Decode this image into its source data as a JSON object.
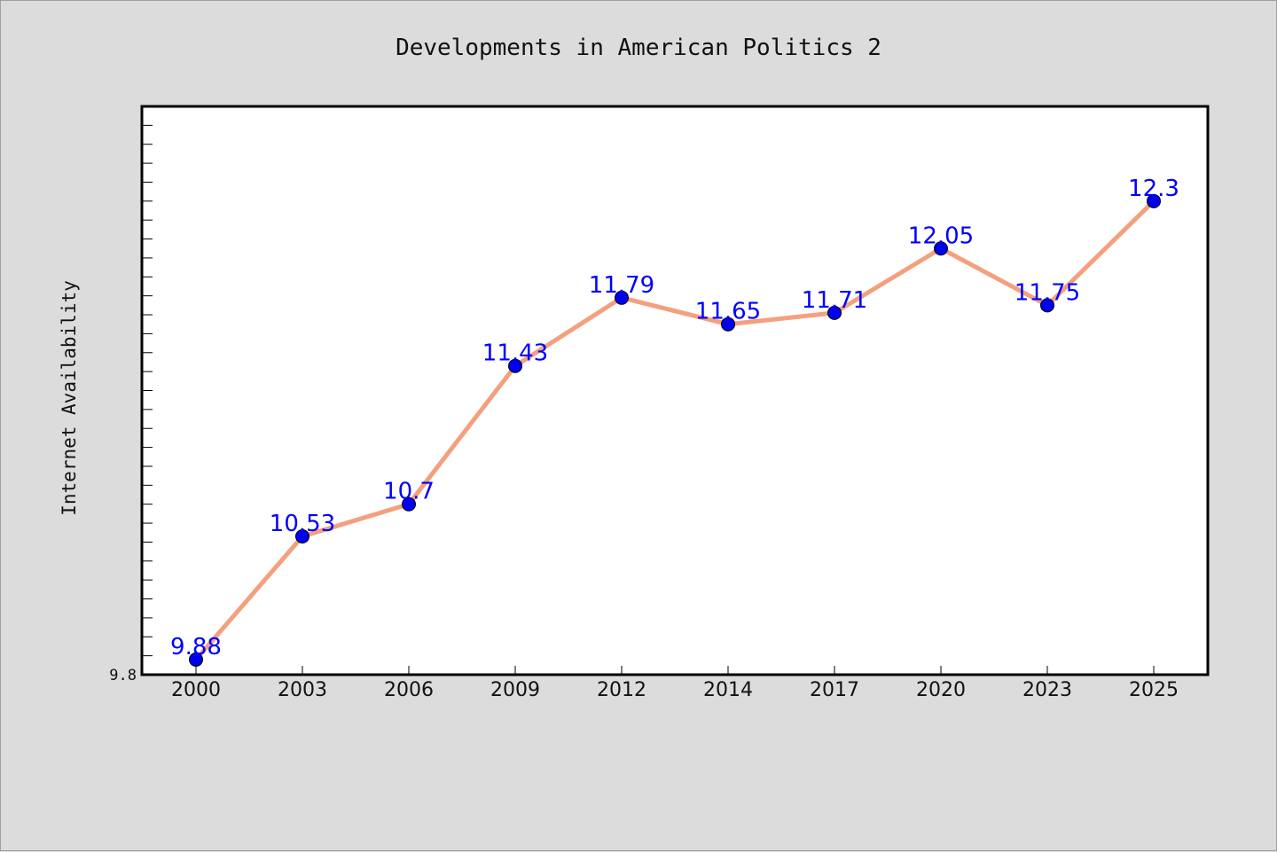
{
  "chart_data": {
    "type": "line",
    "title": "Developments in American Politics 2",
    "xlabel": "",
    "ylabel": "Internet Availability",
    "categories": [
      "2000",
      "2003",
      "2006",
      "2009",
      "2012",
      "2014",
      "2017",
      "2020",
      "2023",
      "2025"
    ],
    "series": [
      {
        "values": [
          9.88,
          10.53,
          10.7,
          11.43,
          11.79,
          11.65,
          11.71,
          12.05,
          11.75,
          12.3
        ]
      }
    ],
    "data_labels": [
      "9.88",
      "10.53",
      "10.7",
      "11.43",
      "11.79",
      "11.65",
      "11.71",
      "12.05",
      "11.75",
      "12.3"
    ],
    "ylim": [
      9.8,
      12.8
    ],
    "y_tick_labels": [
      "9.8"
    ],
    "y_minor_tick_step": 0.1,
    "grid": false,
    "colors": {
      "line": "#f4a07e",
      "marker": "#0000ee",
      "marker_edge": "#000000",
      "label": "#0000ff",
      "background": "#dcdcdc",
      "plot_background": "#ffffff"
    }
  }
}
